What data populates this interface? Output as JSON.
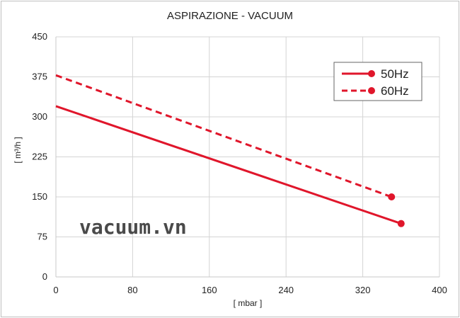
{
  "chart_data": {
    "type": "line",
    "title": "ASPIRAZIONE - VACUUM",
    "xlabel": "[ mbar ]",
    "ylabel": "[ m³/h ]",
    "xlim": [
      0,
      400
    ],
    "ylim": [
      0,
      450
    ],
    "xticks": [
      0,
      80,
      160,
      240,
      320,
      400
    ],
    "yticks": [
      0,
      75,
      150,
      225,
      300,
      375,
      450
    ],
    "grid": true,
    "legend_position": "top-right",
    "series": [
      {
        "name": "50Hz",
        "style": "solid",
        "color": "#e0162b",
        "x": [
          0,
          360
        ],
        "y": [
          320,
          100
        ]
      },
      {
        "name": "60Hz",
        "style": "dashed",
        "color": "#e0162b",
        "x": [
          0,
          350
        ],
        "y": [
          378,
          150
        ]
      }
    ]
  },
  "watermark": "vacuum.vn"
}
